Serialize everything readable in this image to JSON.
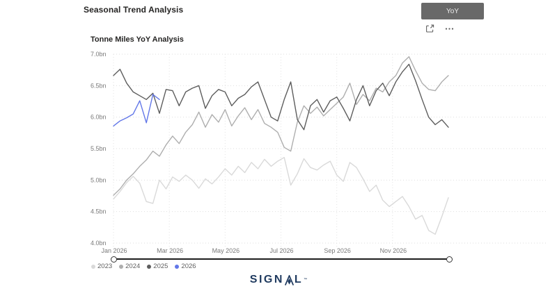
{
  "page": {
    "title": "Seasonal Trend Analysis"
  },
  "visual_header": {
    "yoy_button_label": "YoY",
    "icons": [
      "focus-mode-icon",
      "more-options-icon"
    ]
  },
  "chart": {
    "title": "Tonne Miles YoY Analysis"
  },
  "chart_data": {
    "type": "line",
    "title": "Tonne Miles YoY Analysis",
    "x_axis": {
      "tick_labels": [
        "Jan 2026",
        "Mar 2026",
        "May 2026",
        "Jul 2026",
        "Sep 2026",
        "Nov 2026"
      ],
      "span": "Jan through Dec, weekly data points",
      "gridlines": "dotted, every 2 months"
    },
    "y_axis": {
      "tick_labels": [
        "4.0bn",
        "4.5bn",
        "5.0bn",
        "5.5bn",
        "6.0bn",
        "6.5bn",
        "7.0bn"
      ],
      "min": 4.0,
      "max": 7.0,
      "step": 0.5,
      "unit": "bn tonne miles",
      "gridlines": "dotted"
    },
    "legend_position": "bottom-left",
    "series": [
      {
        "name": "2023",
        "color": "#d9d9d9",
        "values": [
          4.7,
          4.82,
          4.96,
          5.06,
          4.95,
          4.66,
          4.63,
          5.0,
          4.86,
          5.05,
          4.98,
          5.08,
          5.0,
          4.87,
          5.02,
          4.94,
          5.05,
          5.18,
          5.08,
          5.22,
          5.12,
          5.28,
          5.18,
          5.33,
          5.22,
          5.3,
          5.36,
          4.92,
          5.1,
          5.34,
          5.2,
          5.16,
          5.24,
          5.3,
          5.08,
          4.98,
          5.28,
          5.2,
          5.02,
          4.82,
          4.92,
          4.68,
          4.58,
          4.66,
          4.74,
          4.58,
          4.38,
          4.44,
          4.2,
          4.14,
          4.42,
          4.72
        ]
      },
      {
        "name": "2024",
        "color": "#aeaeae",
        "values": [
          4.76,
          4.86,
          5.0,
          5.1,
          5.22,
          5.32,
          5.46,
          5.38,
          5.56,
          5.7,
          5.58,
          5.76,
          5.88,
          6.08,
          5.84,
          6.04,
          5.92,
          6.12,
          5.86,
          6.02,
          6.15,
          5.96,
          6.12,
          5.9,
          5.84,
          5.76,
          5.52,
          5.46,
          5.92,
          6.18,
          6.06,
          6.16,
          6.02,
          6.12,
          6.22,
          6.32,
          6.54,
          6.2,
          6.36,
          6.26,
          6.46,
          6.4,
          6.56,
          6.66,
          6.86,
          6.96,
          6.74,
          6.54,
          6.44,
          6.42,
          6.56,
          6.66
        ]
      },
      {
        "name": "2025",
        "color": "#5d5d5d",
        "values": [
          6.66,
          6.76,
          6.54,
          6.4,
          6.34,
          6.28,
          6.38,
          6.06,
          6.44,
          6.42,
          6.18,
          6.4,
          6.46,
          6.5,
          6.14,
          6.34,
          6.44,
          6.4,
          6.18,
          6.3,
          6.36,
          6.48,
          6.56,
          6.28,
          6.0,
          5.94,
          6.28,
          6.56,
          5.96,
          5.8,
          6.18,
          6.28,
          6.08,
          6.26,
          6.32,
          6.14,
          5.94,
          6.28,
          6.5,
          6.18,
          6.42,
          6.54,
          6.34,
          6.56,
          6.72,
          6.84,
          6.58,
          6.28,
          6.0,
          5.88,
          5.96,
          5.84
        ]
      },
      {
        "name": "2026",
        "color": "#6277e8",
        "values": [
          5.86,
          5.94,
          5.99,
          6.05,
          6.26,
          5.91,
          6.36,
          6.28
        ]
      }
    ]
  },
  "footer": {
    "logo_text": "SIGNAL",
    "logo_mark": "™"
  }
}
